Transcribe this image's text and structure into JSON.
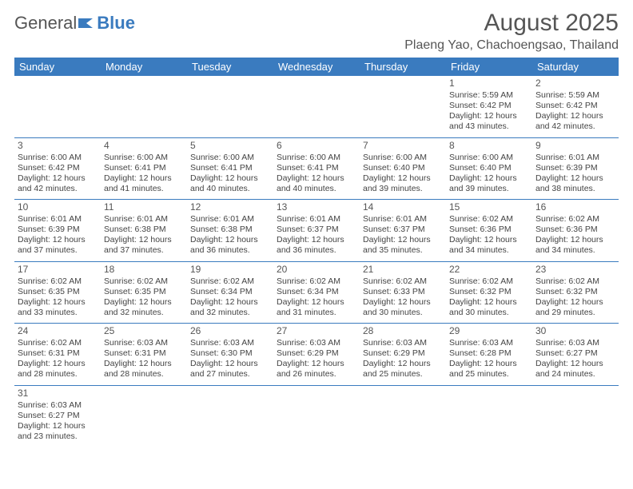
{
  "logo": {
    "text_general": "General",
    "text_blue": "Blue"
  },
  "header": {
    "month_title": "August 2025",
    "location": "Plaeng Yao, Chachoengsao, Thailand"
  },
  "colors": {
    "brand_blue": "#3a7bbf",
    "text": "#444444",
    "bg": "#ffffff"
  },
  "days_of_week": [
    "Sunday",
    "Monday",
    "Tuesday",
    "Wednesday",
    "Thursday",
    "Friday",
    "Saturday"
  ],
  "weeks": [
    [
      null,
      null,
      null,
      null,
      null,
      {
        "n": "1",
        "sr": "Sunrise: 5:59 AM",
        "ss": "Sunset: 6:42 PM",
        "d1": "Daylight: 12 hours",
        "d2": "and 43 minutes."
      },
      {
        "n": "2",
        "sr": "Sunrise: 5:59 AM",
        "ss": "Sunset: 6:42 PM",
        "d1": "Daylight: 12 hours",
        "d2": "and 42 minutes."
      }
    ],
    [
      {
        "n": "3",
        "sr": "Sunrise: 6:00 AM",
        "ss": "Sunset: 6:42 PM",
        "d1": "Daylight: 12 hours",
        "d2": "and 42 minutes."
      },
      {
        "n": "4",
        "sr": "Sunrise: 6:00 AM",
        "ss": "Sunset: 6:41 PM",
        "d1": "Daylight: 12 hours",
        "d2": "and 41 minutes."
      },
      {
        "n": "5",
        "sr": "Sunrise: 6:00 AM",
        "ss": "Sunset: 6:41 PM",
        "d1": "Daylight: 12 hours",
        "d2": "and 40 minutes."
      },
      {
        "n": "6",
        "sr": "Sunrise: 6:00 AM",
        "ss": "Sunset: 6:41 PM",
        "d1": "Daylight: 12 hours",
        "d2": "and 40 minutes."
      },
      {
        "n": "7",
        "sr": "Sunrise: 6:00 AM",
        "ss": "Sunset: 6:40 PM",
        "d1": "Daylight: 12 hours",
        "d2": "and 39 minutes."
      },
      {
        "n": "8",
        "sr": "Sunrise: 6:00 AM",
        "ss": "Sunset: 6:40 PM",
        "d1": "Daylight: 12 hours",
        "d2": "and 39 minutes."
      },
      {
        "n": "9",
        "sr": "Sunrise: 6:01 AM",
        "ss": "Sunset: 6:39 PM",
        "d1": "Daylight: 12 hours",
        "d2": "and 38 minutes."
      }
    ],
    [
      {
        "n": "10",
        "sr": "Sunrise: 6:01 AM",
        "ss": "Sunset: 6:39 PM",
        "d1": "Daylight: 12 hours",
        "d2": "and 37 minutes."
      },
      {
        "n": "11",
        "sr": "Sunrise: 6:01 AM",
        "ss": "Sunset: 6:38 PM",
        "d1": "Daylight: 12 hours",
        "d2": "and 37 minutes."
      },
      {
        "n": "12",
        "sr": "Sunrise: 6:01 AM",
        "ss": "Sunset: 6:38 PM",
        "d1": "Daylight: 12 hours",
        "d2": "and 36 minutes."
      },
      {
        "n": "13",
        "sr": "Sunrise: 6:01 AM",
        "ss": "Sunset: 6:37 PM",
        "d1": "Daylight: 12 hours",
        "d2": "and 36 minutes."
      },
      {
        "n": "14",
        "sr": "Sunrise: 6:01 AM",
        "ss": "Sunset: 6:37 PM",
        "d1": "Daylight: 12 hours",
        "d2": "and 35 minutes."
      },
      {
        "n": "15",
        "sr": "Sunrise: 6:02 AM",
        "ss": "Sunset: 6:36 PM",
        "d1": "Daylight: 12 hours",
        "d2": "and 34 minutes."
      },
      {
        "n": "16",
        "sr": "Sunrise: 6:02 AM",
        "ss": "Sunset: 6:36 PM",
        "d1": "Daylight: 12 hours",
        "d2": "and 34 minutes."
      }
    ],
    [
      {
        "n": "17",
        "sr": "Sunrise: 6:02 AM",
        "ss": "Sunset: 6:35 PM",
        "d1": "Daylight: 12 hours",
        "d2": "and 33 minutes."
      },
      {
        "n": "18",
        "sr": "Sunrise: 6:02 AM",
        "ss": "Sunset: 6:35 PM",
        "d1": "Daylight: 12 hours",
        "d2": "and 32 minutes."
      },
      {
        "n": "19",
        "sr": "Sunrise: 6:02 AM",
        "ss": "Sunset: 6:34 PM",
        "d1": "Daylight: 12 hours",
        "d2": "and 32 minutes."
      },
      {
        "n": "20",
        "sr": "Sunrise: 6:02 AM",
        "ss": "Sunset: 6:34 PM",
        "d1": "Daylight: 12 hours",
        "d2": "and 31 minutes."
      },
      {
        "n": "21",
        "sr": "Sunrise: 6:02 AM",
        "ss": "Sunset: 6:33 PM",
        "d1": "Daylight: 12 hours",
        "d2": "and 30 minutes."
      },
      {
        "n": "22",
        "sr": "Sunrise: 6:02 AM",
        "ss": "Sunset: 6:32 PM",
        "d1": "Daylight: 12 hours",
        "d2": "and 30 minutes."
      },
      {
        "n": "23",
        "sr": "Sunrise: 6:02 AM",
        "ss": "Sunset: 6:32 PM",
        "d1": "Daylight: 12 hours",
        "d2": "and 29 minutes."
      }
    ],
    [
      {
        "n": "24",
        "sr": "Sunrise: 6:02 AM",
        "ss": "Sunset: 6:31 PM",
        "d1": "Daylight: 12 hours",
        "d2": "and 28 minutes."
      },
      {
        "n": "25",
        "sr": "Sunrise: 6:03 AM",
        "ss": "Sunset: 6:31 PM",
        "d1": "Daylight: 12 hours",
        "d2": "and 28 minutes."
      },
      {
        "n": "26",
        "sr": "Sunrise: 6:03 AM",
        "ss": "Sunset: 6:30 PM",
        "d1": "Daylight: 12 hours",
        "d2": "and 27 minutes."
      },
      {
        "n": "27",
        "sr": "Sunrise: 6:03 AM",
        "ss": "Sunset: 6:29 PM",
        "d1": "Daylight: 12 hours",
        "d2": "and 26 minutes."
      },
      {
        "n": "28",
        "sr": "Sunrise: 6:03 AM",
        "ss": "Sunset: 6:29 PM",
        "d1": "Daylight: 12 hours",
        "d2": "and 25 minutes."
      },
      {
        "n": "29",
        "sr": "Sunrise: 6:03 AM",
        "ss": "Sunset: 6:28 PM",
        "d1": "Daylight: 12 hours",
        "d2": "and 25 minutes."
      },
      {
        "n": "30",
        "sr": "Sunrise: 6:03 AM",
        "ss": "Sunset: 6:27 PM",
        "d1": "Daylight: 12 hours",
        "d2": "and 24 minutes."
      }
    ],
    [
      {
        "n": "31",
        "sr": "Sunrise: 6:03 AM",
        "ss": "Sunset: 6:27 PM",
        "d1": "Daylight: 12 hours",
        "d2": "and 23 minutes."
      },
      null,
      null,
      null,
      null,
      null,
      null
    ]
  ]
}
